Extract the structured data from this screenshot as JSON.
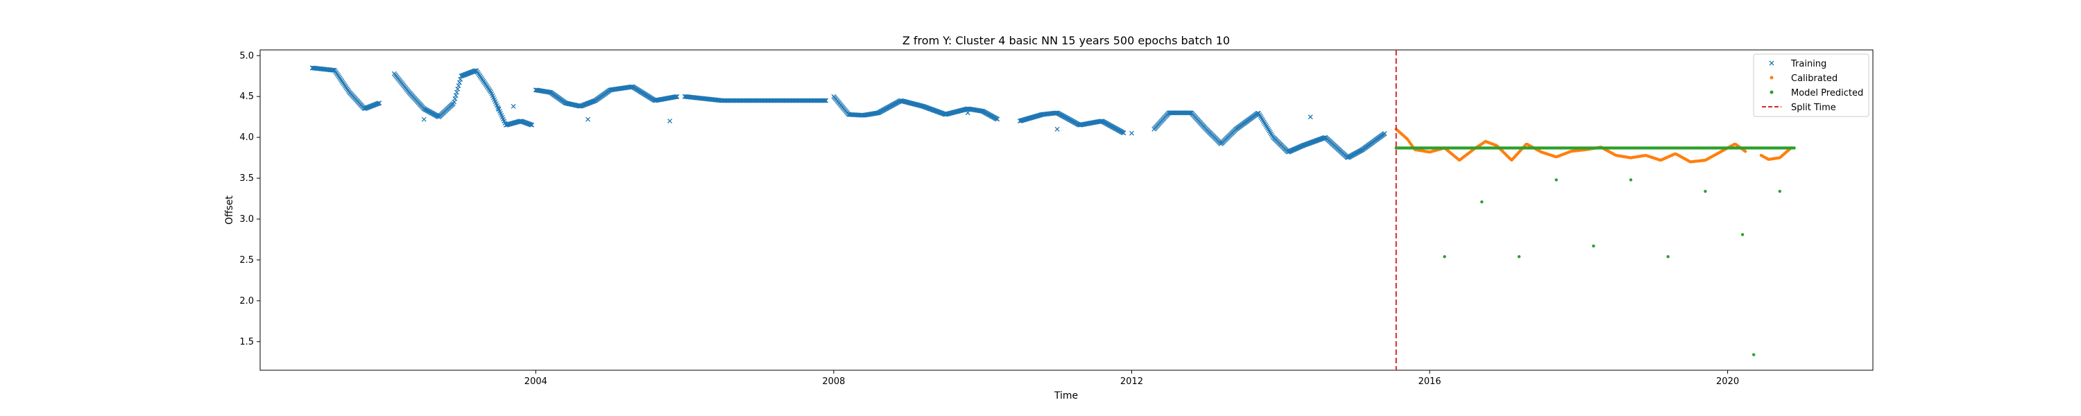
{
  "chart_data": {
    "type": "scatter",
    "title": "Z from Y: Cluster 4 basic NN 15 years 500 epochs batch 10",
    "xlabel": "Time",
    "ylabel": "Offset",
    "xlim": [
      2000.3,
      2021.95
    ],
    "ylim": [
      1.15,
      5.07
    ],
    "xticks": [
      {
        "value": 2004,
        "label": "2004"
      },
      {
        "value": 2008,
        "label": "2008"
      },
      {
        "value": 2012,
        "label": "2012"
      },
      {
        "value": 2016,
        "label": "2016"
      },
      {
        "value": 2020,
        "label": "2020"
      }
    ],
    "yticks": [
      {
        "value": 1.5,
        "label": "1.5"
      },
      {
        "value": 2.0,
        "label": "2.0"
      },
      {
        "value": 2.5,
        "label": "2.5"
      },
      {
        "value": 3.0,
        "label": "3.0"
      },
      {
        "value": 3.5,
        "label": "3.5"
      },
      {
        "value": 4.0,
        "label": "4.0"
      },
      {
        "value": 4.5,
        "label": "4.5"
      },
      {
        "value": 5.0,
        "label": "5.0"
      }
    ],
    "grid": false,
    "legend_position": "top-right",
    "split_time": 2015.55,
    "series": [
      {
        "name": "Training",
        "marker": "x",
        "color": "#1f77b4",
        "segments": [
          {
            "x": [
              2001.0,
              2001.3,
              2001.5,
              2001.7,
              2001.9
            ],
            "y": [
              4.85,
              4.82,
              4.55,
              4.35,
              4.42
            ]
          },
          {
            "x": [
              2002.1,
              2002.3,
              2002.5,
              2002.7,
              2002.9,
              2003.0,
              2003.2,
              2003.4,
              2003.6,
              2003.8,
              2003.95
            ],
            "y": [
              4.78,
              4.55,
              4.35,
              4.25,
              4.42,
              4.75,
              4.82,
              4.55,
              4.15,
              4.2,
              4.15
            ]
          },
          {
            "x": [
              2004.0,
              2004.2,
              2004.4,
              2004.6,
              2004.8,
              2005.0,
              2005.3,
              2005.6,
              2005.9
            ],
            "y": [
              4.58,
              4.55,
              4.42,
              4.38,
              4.45,
              4.58,
              4.62,
              4.45,
              4.5
            ]
          },
          {
            "x": [
              2006.0,
              2006.5,
              2007.0,
              2007.5,
              2007.9
            ],
            "y": [
              4.5,
              4.45,
              4.45,
              4.45,
              4.45
            ]
          },
          {
            "x": [
              2008.0,
              2008.2,
              2008.4,
              2008.6,
              2008.9,
              2009.2,
              2009.5,
              2009.8,
              2010.0,
              2010.2
            ],
            "y": [
              4.5,
              4.28,
              4.27,
              4.3,
              4.45,
              4.38,
              4.28,
              4.35,
              4.32,
              4.22
            ]
          },
          {
            "x": [
              2010.5,
              2010.8,
              2011.0,
              2011.3,
              2011.6,
              2011.9
            ],
            "y": [
              4.2,
              4.28,
              4.3,
              4.15,
              4.2,
              4.05
            ]
          },
          {
            "x": [
              2012.3,
              2012.5,
              2012.8,
              2013.0,
              2013.2,
              2013.4,
              2013.7,
              2013.9,
              2014.1,
              2014.3,
              2014.6,
              2014.9,
              2015.1,
              2015.4
            ],
            "y": [
              4.1,
              4.3,
              4.3,
              4.1,
              3.92,
              4.1,
              4.3,
              4.0,
              3.82,
              3.9,
              4.0,
              3.75,
              3.85,
              4.05
            ]
          }
        ],
        "outliers": {
          "x": [
            2002.5,
            2003.5,
            2003.7,
            2004.7,
            2005.8,
            2009.8,
            2011.0,
            2012.0,
            2014.4
          ],
          "y": [
            4.22,
            4.35,
            4.38,
            4.22,
            4.2,
            4.3,
            4.1,
            4.05,
            4.25
          ]
        }
      },
      {
        "name": "Calibrated",
        "marker": "dot",
        "color": "#ff7f0e",
        "segments": [
          {
            "x": [
              2015.55,
              2015.7,
              2015.8,
              2016.0,
              2016.2,
              2016.4,
              2016.6,
              2016.75,
              2016.9,
              2017.1,
              2017.3,
              2017.5,
              2017.7,
              2017.9,
              2018.1,
              2018.3,
              2018.5,
              2018.7,
              2018.9,
              2019.1,
              2019.3,
              2019.5,
              2019.7,
              2019.9,
              2020.1,
              2020.25
            ],
            "y": [
              4.1,
              3.98,
              3.85,
              3.82,
              3.87,
              3.72,
              3.86,
              3.95,
              3.9,
              3.72,
              3.92,
              3.82,
              3.76,
              3.83,
              3.85,
              3.88,
              3.78,
              3.75,
              3.78,
              3.72,
              3.8,
              3.7,
              3.72,
              3.82,
              3.92,
              3.82
            ]
          },
          {
            "x": [
              2020.45,
              2020.55,
              2020.7,
              2020.85
            ],
            "y": [
              3.78,
              3.73,
              3.75,
              3.87
            ]
          }
        ]
      },
      {
        "name": "Model Predicted",
        "marker": "dot",
        "color": "#2ca02c",
        "segments": [
          {
            "x": [
              2015.55,
              2020.9
            ],
            "y": [
              3.87,
              3.87
            ]
          }
        ],
        "outliers": {
          "x": [
            2016.2,
            2016.7,
            2017.2,
            2017.7,
            2018.2,
            2018.7,
            2019.2,
            2019.7,
            2020.2,
            2020.35,
            2020.7
          ],
          "y": [
            2.54,
            3.21,
            2.54,
            3.48,
            2.67,
            3.48,
            2.54,
            3.34,
            2.81,
            1.34,
            3.34
          ]
        }
      },
      {
        "name": "Split Time",
        "marker": "dashed-line",
        "color": "#d62728"
      }
    ]
  }
}
